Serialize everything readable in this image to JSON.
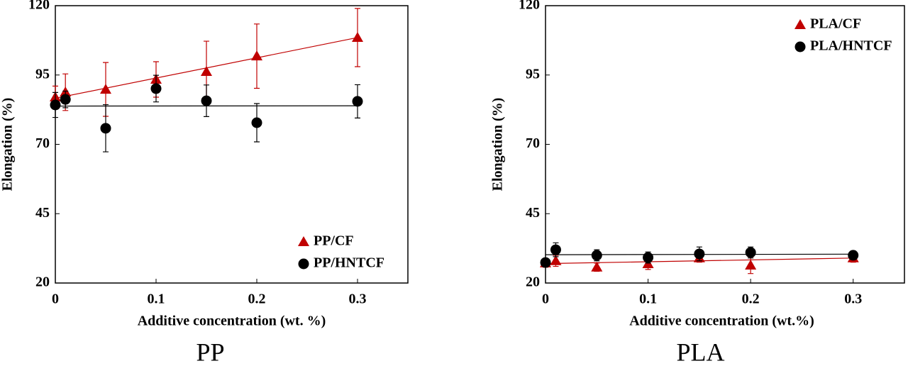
{
  "chart_data": [
    {
      "type": "scatter",
      "caption": "PP",
      "ylabel": "Elongation (%)",
      "xlabel": "Additive concentration (wt. %)",
      "xlim": [
        0,
        0.35
      ],
      "xticks": [
        0,
        0.1,
        0.2,
        0.3
      ],
      "ylim": [
        20,
        120
      ],
      "yticks": [
        20,
        45,
        70,
        95,
        120
      ],
      "legend": "lower right",
      "series": [
        {
          "name": "PP/CF",
          "color": "#c00000",
          "marker": "triangle",
          "x": [
            0,
            0.01,
            0.05,
            0.1,
            0.15,
            0.2,
            0.3
          ],
          "values": [
            87,
            88.8,
            89.8,
            93.4,
            96.2,
            101.8,
            108.5
          ],
          "errors": [
            4,
            6.6,
            9.7,
            6.4,
            11,
            11.6,
            10.5
          ],
          "trend_x": [
            0,
            0.3
          ],
          "trend_values": [
            86.6,
            108.5
          ]
        },
        {
          "name": "PP/HNTCF",
          "color": "#000000",
          "marker": "circle",
          "x": [
            0,
            0.01,
            0.05,
            0.1,
            0.15,
            0.2,
            0.3
          ],
          "values": [
            84.2,
            86.2,
            75.8,
            90.1,
            85.7,
            77.8,
            85.5
          ],
          "errors": [
            4.5,
            3,
            8.5,
            4.8,
            5.7,
            6.9,
            6
          ],
          "trend_x": [
            0,
            0.3
          ],
          "trend_values": [
            83.8,
            83.9
          ]
        }
      ]
    },
    {
      "type": "scatter",
      "caption": "PLA",
      "ylabel": "Elongation (%)",
      "xlabel": "Additive concentration (wt.%)",
      "xlim": [
        0,
        0.35
      ],
      "xticks": [
        0,
        0.1,
        0.2,
        0.3
      ],
      "ylim": [
        20,
        120
      ],
      "yticks": [
        20,
        45,
        70,
        95,
        120
      ],
      "legend": "upper right",
      "series": [
        {
          "name": "PLA/CF",
          "color": "#c00000",
          "marker": "triangle",
          "x": [
            0,
            0.01,
            0.05,
            0.1,
            0.15,
            0.2,
            0.3
          ],
          "values": [
            27.2,
            28,
            25.7,
            26.9,
            29,
            26.4,
            29
          ],
          "errors": [
            1.5,
            2,
            1.5,
            2,
            1.5,
            3,
            1.5
          ],
          "trend_x": [
            0,
            0.3
          ],
          "trend_values": [
            27,
            29
          ]
        },
        {
          "name": "PLA/HNTCF",
          "color": "#000000",
          "marker": "circle",
          "x": [
            0,
            0.01,
            0.05,
            0.1,
            0.15,
            0.2,
            0.3
          ],
          "values": [
            27.4,
            32,
            30,
            29.2,
            30.5,
            31,
            30
          ],
          "errors": [
            1.5,
            2.5,
            2,
            2,
            2.5,
            2,
            1.5
          ],
          "trend_x": [
            0,
            0.3
          ],
          "trend_values": [
            30.2,
            30.4
          ]
        }
      ]
    }
  ]
}
